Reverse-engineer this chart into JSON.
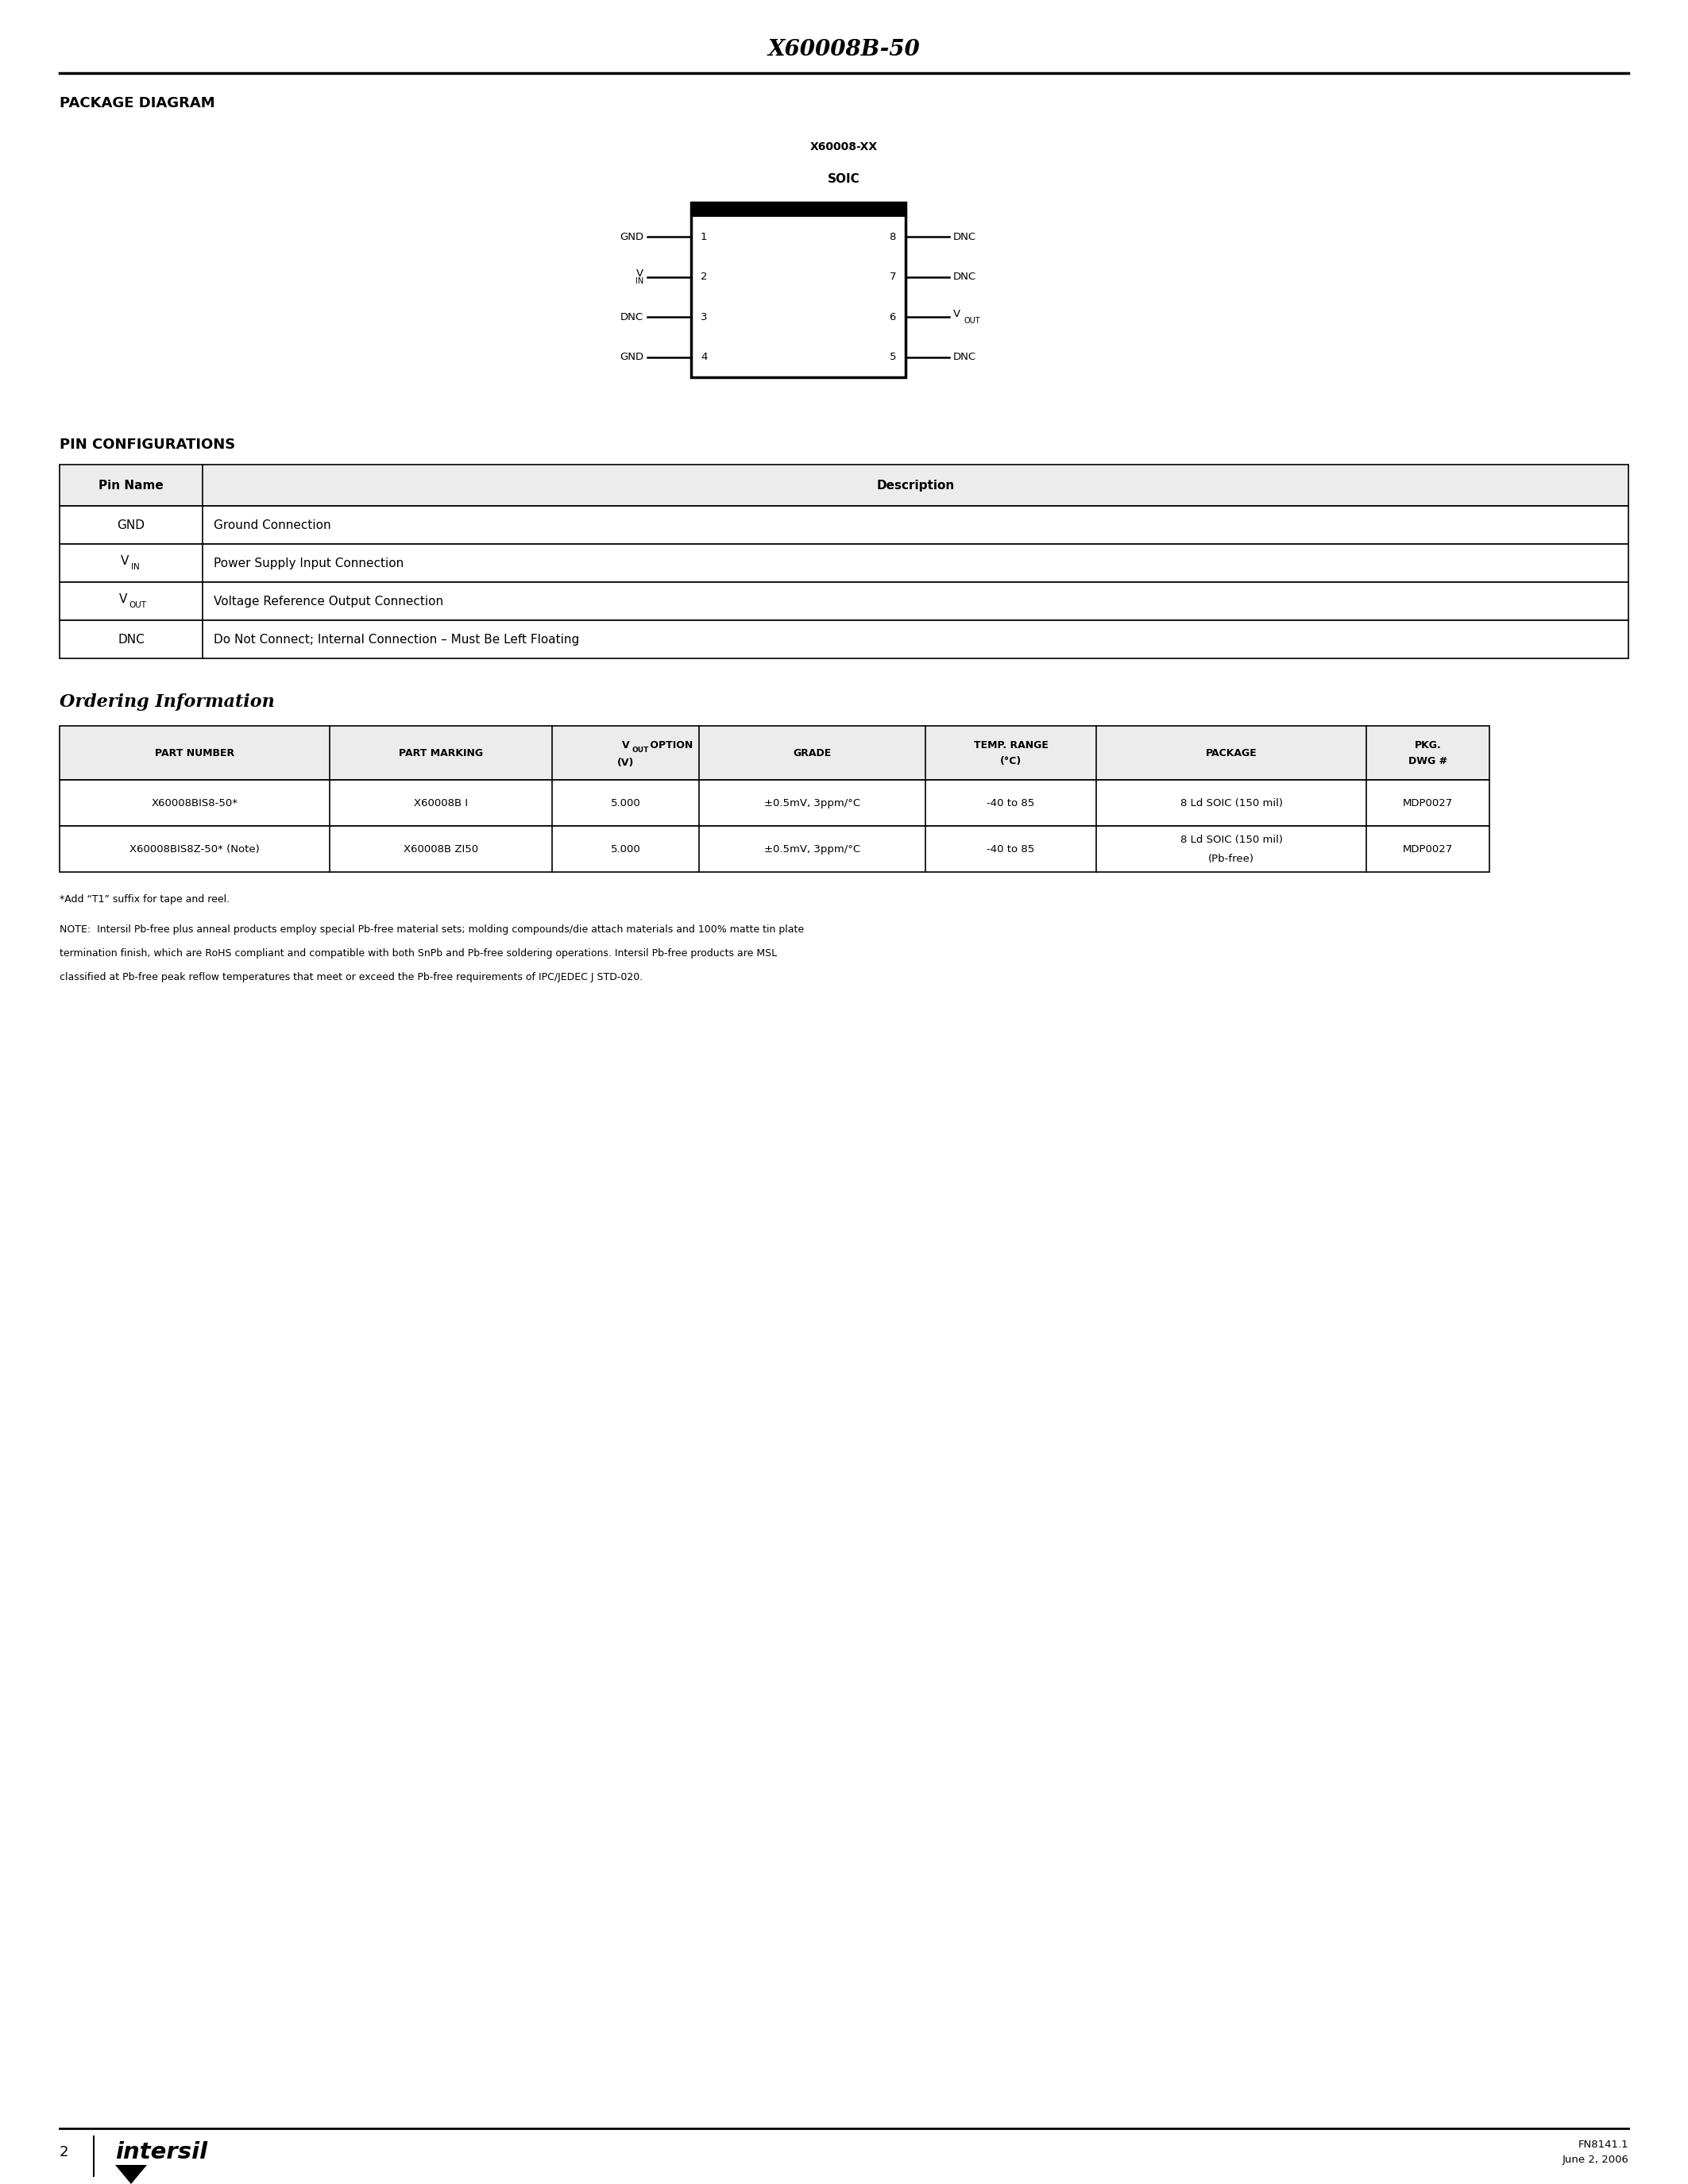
{
  "page_title": "X60008B-50",
  "bg_color": "#ffffff",
  "text_color": "#000000",
  "page_number": "2",
  "footer_fn": "FN8141.1",
  "footer_date": "June 2, 2006",
  "section1_title": "PACKAGE DIAGRAM",
  "ic_label": "X60008-XX",
  "ic_sublabel": "SOIC",
  "left_pins": [
    {
      "num": "1",
      "name": "GND"
    },
    {
      "num": "2",
      "name": "V_IN"
    },
    {
      "num": "3",
      "name": "DNC"
    },
    {
      "num": "4",
      "name": "GND"
    }
  ],
  "right_pins": [
    {
      "num": "8",
      "name": "DNC"
    },
    {
      "num": "7",
      "name": "DNC"
    },
    {
      "num": "6",
      "name": "V_OUT"
    },
    {
      "num": "5",
      "name": "DNC"
    }
  ],
  "section2_title": "PIN CONFIGURATIONS",
  "pin_table_rows": [
    [
      "GND",
      "Ground Connection"
    ],
    [
      "V_IN",
      "Power Supply Input Connection"
    ],
    [
      "V_OUT",
      "Voltage Reference Output Connection"
    ],
    [
      "DNC",
      "Do Not Connect; Internal Connection – Must Be Left Floating"
    ]
  ],
  "section3_title": "Ordering Information",
  "order_col_widths": [
    340,
    280,
    185,
    285,
    215,
    340,
    155
  ],
  "order_table_rows": [
    [
      "X60008BIS8-50*",
      "X60008B I",
      "5.000",
      "±0.5mV, 3ppm/°C",
      "-40 to 85",
      "8 Ld SOIC (150 mil)",
      "MDP0027"
    ],
    [
      "X60008BIS8Z-50* (Note)",
      "X60008B ZI50",
      "5.000",
      "±0.5mV, 3ppm/°C",
      "-40 to 85",
      "8 Ld SOIC (150 mil)\n(Pb-free)",
      "MDP0027"
    ]
  ],
  "footnote1": "*Add “T1” suffix for tape and reel.",
  "note_line1": "NOTE:  Intersil Pb-free plus anneal products employ special Pb-free material sets; molding compounds/die attach materials and 100% matte tin plate",
  "note_line2": "termination finish, which are RoHS compliant and compatible with both SnPb and Pb-free soldering operations. Intersil Pb-free products are MSL",
  "note_line3": "classified at Pb-free peak reflow temperatures that meet or exceed the Pb-free requirements of IPC/JEDEC J STD-020."
}
